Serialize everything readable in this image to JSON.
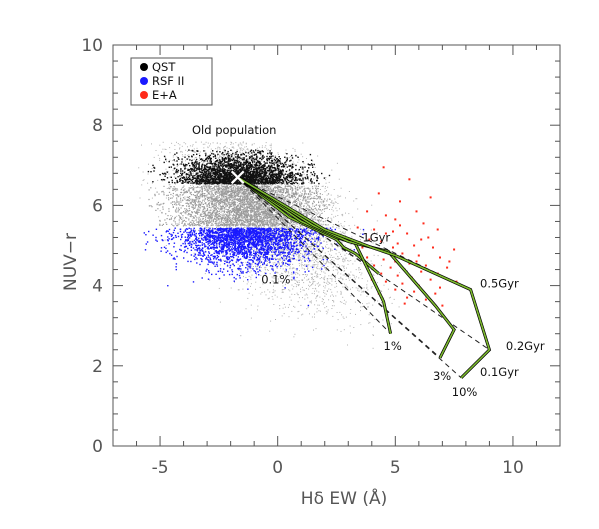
{
  "chart_data": {
    "type": "scatter",
    "xlabel": "Hδ EW (Å)",
    "ylabel": "NUV−r",
    "xlim": [
      -7,
      12
    ],
    "ylim": [
      0,
      10
    ],
    "x_ticks": [
      -5,
      0,
      5,
      10
    ],
    "y_ticks": [
      0,
      2,
      4,
      6,
      8,
      10
    ],
    "grid": false,
    "legend_position": "top-left",
    "legend": [
      {
        "label": "QST",
        "color": "#000000"
      },
      {
        "label": "RSF II",
        "color": "#1a1aff"
      },
      {
        "label": "E+A",
        "color": "#ff2a1a"
      }
    ],
    "old_population": {
      "label": "Old population",
      "x": -1.7,
      "y": 6.7
    },
    "burst_fractions": [
      {
        "label": "0.1%",
        "end": [
          4.3,
          4.3
        ]
      },
      {
        "label": "1%",
        "end": [
          4.8,
          2.8
        ]
      },
      {
        "label": "3%",
        "end": [
          6.9,
          2.2
        ]
      },
      {
        "label": "10%",
        "end": [
          7.8,
          1.7
        ]
      }
    ],
    "age_labels": [
      {
        "label": "1Gyr",
        "x": 3.6,
        "y": 5.1
      },
      {
        "label": "0.5Gyr",
        "x": 8.6,
        "y": 3.95
      },
      {
        "label": "0.2Gyr",
        "x": 9.7,
        "y": 2.4
      },
      {
        "label": "0.1Gyr",
        "x": 8.6,
        "y": 1.75
      }
    ],
    "tracks": [
      {
        "name": "0.1%",
        "points": [
          [
            -1.7,
            6.7
          ],
          [
            0.5,
            5.7
          ],
          [
            2.5,
            5.15
          ],
          [
            2.8,
            4.95
          ],
          [
            3.3,
            4.8
          ],
          [
            4.3,
            4.3
          ]
        ]
      },
      {
        "name": "1%",
        "points": [
          [
            -1.7,
            6.7
          ],
          [
            1.0,
            5.6
          ],
          [
            2.5,
            5.2
          ],
          [
            3.3,
            5.05
          ],
          [
            4.5,
            3.6
          ],
          [
            4.8,
            2.8
          ]
        ]
      },
      {
        "name": "3%",
        "points": [
          [
            -1.7,
            6.7
          ],
          [
            1.5,
            5.5
          ],
          [
            3.0,
            5.1
          ],
          [
            4.7,
            4.85
          ],
          [
            6.7,
            3.5
          ],
          [
            7.5,
            2.9
          ],
          [
            6.9,
            2.2
          ]
        ]
      },
      {
        "name": "10%",
        "points": [
          [
            -1.7,
            6.7
          ],
          [
            2.0,
            5.4
          ],
          [
            4.0,
            4.95
          ],
          [
            5.0,
            4.75
          ],
          [
            8.2,
            3.9
          ],
          [
            9.0,
            2.4
          ],
          [
            7.8,
            1.7
          ]
        ]
      }
    ],
    "age_lines": [
      {
        "name": "0.5Gyr",
        "points": [
          [
            -1.7,
            6.7
          ],
          [
            8.2,
            3.9
          ]
        ]
      },
      {
        "name": "0.2Gyr",
        "points": [
          [
            -1.7,
            6.7
          ],
          [
            9.0,
            2.4
          ]
        ]
      },
      {
        "name": "0.1Gyr",
        "points": [
          [
            -1.7,
            6.7
          ],
          [
            7.8,
            1.7
          ]
        ]
      }
    ],
    "age_line_ends": [
      [
        4.3,
        4.3
      ],
      [
        4.8,
        2.8
      ],
      [
        6.9,
        2.2
      ],
      [
        7.8,
        1.7
      ],
      [
        8.2,
        3.9
      ],
      [
        9.0,
        2.4
      ]
    ],
    "ea_points": [
      [
        4.5,
        6.95
      ],
      [
        5.6,
        6.65
      ],
      [
        5.2,
        6.1
      ],
      [
        3.8,
        5.85
      ],
      [
        4.6,
        5.75
      ],
      [
        5.0,
        5.65
      ],
      [
        6.2,
        5.55
      ],
      [
        3.4,
        5.45
      ],
      [
        4.1,
        5.4
      ],
      [
        4.9,
        5.35
      ],
      [
        5.5,
        5.3
      ],
      [
        6.4,
        5.2
      ],
      [
        3.9,
        5.15
      ],
      [
        4.4,
        5.1
      ],
      [
        5.1,
        5.05
      ],
      [
        5.8,
        5.0
      ],
      [
        6.6,
        4.95
      ],
      [
        3.6,
        4.95
      ],
      [
        4.2,
        4.9
      ],
      [
        4.7,
        4.85
      ],
      [
        5.3,
        4.8
      ],
      [
        6.0,
        4.75
      ],
      [
        6.9,
        4.7
      ],
      [
        3.8,
        4.7
      ],
      [
        4.5,
        4.65
      ],
      [
        5.0,
        4.6
      ],
      [
        5.6,
        4.55
      ],
      [
        6.3,
        4.5
      ],
      [
        7.2,
        4.45
      ],
      [
        4.1,
        4.5
      ],
      [
        4.8,
        4.45
      ],
      [
        5.4,
        4.4
      ],
      [
        6.1,
        4.35
      ],
      [
        6.8,
        4.3
      ],
      [
        4.4,
        4.3
      ],
      [
        5.1,
        4.25
      ],
      [
        5.7,
        4.2
      ],
      [
        6.5,
        4.15
      ],
      [
        7.6,
        4.1
      ],
      [
        4.6,
        4.1
      ],
      [
        5.3,
        4.05
      ],
      [
        6.0,
        4.0
      ],
      [
        6.9,
        3.95
      ],
      [
        5.0,
        3.9
      ],
      [
        5.8,
        3.85
      ],
      [
        6.7,
        3.8
      ],
      [
        4.3,
        3.8
      ],
      [
        5.5,
        3.7
      ],
      [
        6.3,
        3.65
      ],
      [
        5.9,
        5.85
      ],
      [
        6.8,
        5.4
      ],
      [
        7.5,
        4.9
      ],
      [
        4.0,
        4.15
      ],
      [
        4.9,
        4.95
      ],
      [
        5.2,
        5.5
      ],
      [
        6.5,
        6.2
      ],
      [
        4.3,
        6.3
      ],
      [
        7.0,
        3.5
      ],
      [
        5.4,
        3.55
      ],
      [
        6.1,
        5.15
      ],
      [
        3.7,
        4.55
      ],
      [
        4.6,
        5.3
      ],
      [
        5.9,
        4.6
      ],
      [
        7.3,
        4.6
      ]
    ]
  }
}
